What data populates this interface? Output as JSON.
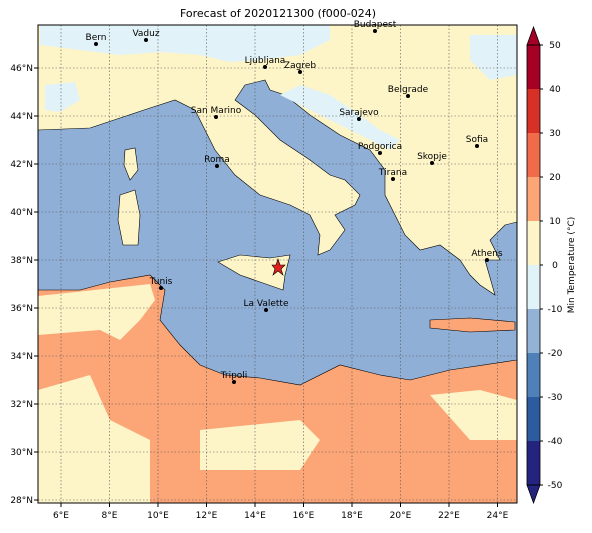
{
  "title": "Forecast of 2020121300 (f000-024)",
  "map": {
    "x_ticks": [
      "6°E",
      "8°E",
      "10°E",
      "12°E",
      "14°E",
      "16°E",
      "18°E",
      "20°E",
      "22°E",
      "24°E"
    ],
    "y_ticks": [
      "28°N",
      "30°N",
      "32°N",
      "34°N",
      "36°N",
      "38°N",
      "40°N",
      "42°N",
      "44°N",
      "46°N"
    ],
    "cities": [
      "Bern",
      "Vaduz",
      "Budapest",
      "Ljubljana",
      "Zagreb",
      "Belgrade",
      "San Marino",
      "Sarajevo",
      "Sofia",
      "Podgorica",
      "Skopje",
      "Roma",
      "Tirana",
      "Athens",
      "Tunis",
      "La Valette",
      "Tripoli"
    ]
  },
  "colorbar": {
    "label": "Min Temperature (°C)",
    "ticks": [
      -50,
      -40,
      -30,
      -20,
      -10,
      0,
      10,
      20,
      30,
      40,
      50
    ],
    "colors": [
      "#24247f",
      "#2c5c9e",
      "#4f81b8",
      "#92b2d6",
      "#e1f3f8",
      "#fdf5c8",
      "#fca577",
      "#f06b4a",
      "#d73027",
      "#a50026"
    ]
  }
}
